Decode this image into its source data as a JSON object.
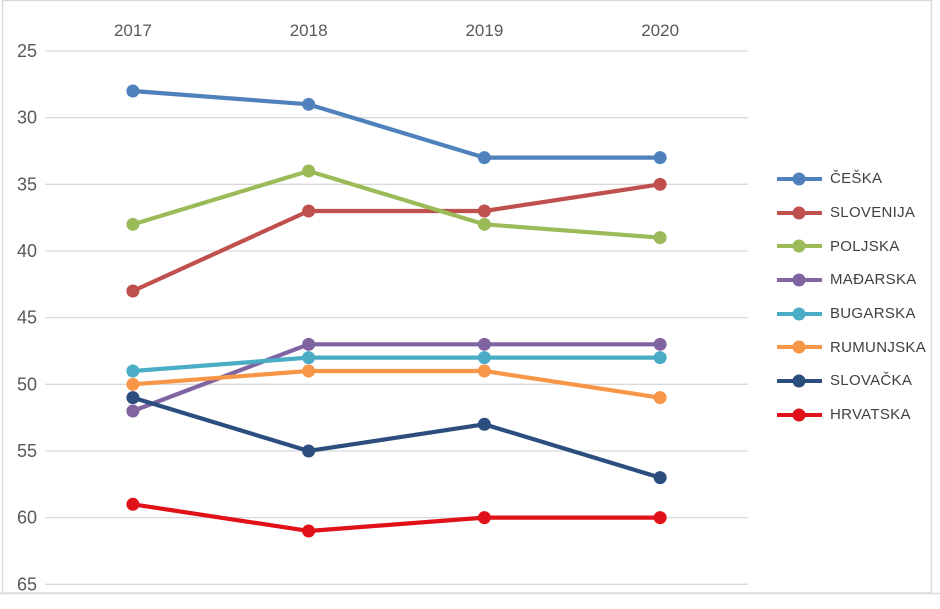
{
  "chart_data": {
    "type": "line",
    "title": "",
    "categories": [
      "2017",
      "2018",
      "2019",
      "2020"
    ],
    "series": [
      {
        "name": "ČEŠKA",
        "color": "#4F81BD",
        "values": [
          28,
          29,
          33,
          33
        ]
      },
      {
        "name": "SLOVENIJA",
        "color": "#C0504D",
        "values": [
          43,
          37,
          37,
          35
        ]
      },
      {
        "name": "POLJSKA",
        "color": "#9BBB59",
        "values": [
          38,
          34,
          38,
          39
        ]
      },
      {
        "name": "MAĐARSKA",
        "color": "#8064A2",
        "values": [
          52,
          47,
          47,
          47
        ]
      },
      {
        "name": "BUGARSKA",
        "color": "#4BACC6",
        "values": [
          49,
          48,
          48,
          48
        ]
      },
      {
        "name": "RUMUNJSKA",
        "color": "#F79646",
        "values": [
          50,
          49,
          49,
          51
        ]
      },
      {
        "name": "SLOVAČKA",
        "color": "#2B4E7E",
        "values": [
          51,
          55,
          53,
          57
        ]
      },
      {
        "name": "HRVATSKA",
        "color": "#E01119",
        "values": [
          59,
          61,
          60,
          60
        ]
      }
    ],
    "y_axis": {
      "ticks": [
        25,
        30,
        35,
        40,
        45,
        50,
        55,
        60,
        65
      ],
      "min": 25,
      "max": 65,
      "reversed": true
    },
    "x_axis": {
      "position": "top"
    },
    "legend": {
      "position": "right"
    },
    "grid": "horizontal",
    "gridline_color": "#D9D9D9",
    "frame_color": "#D9D9D9",
    "axis_label_color": "#595959",
    "legend_text_color": "#404040"
  }
}
